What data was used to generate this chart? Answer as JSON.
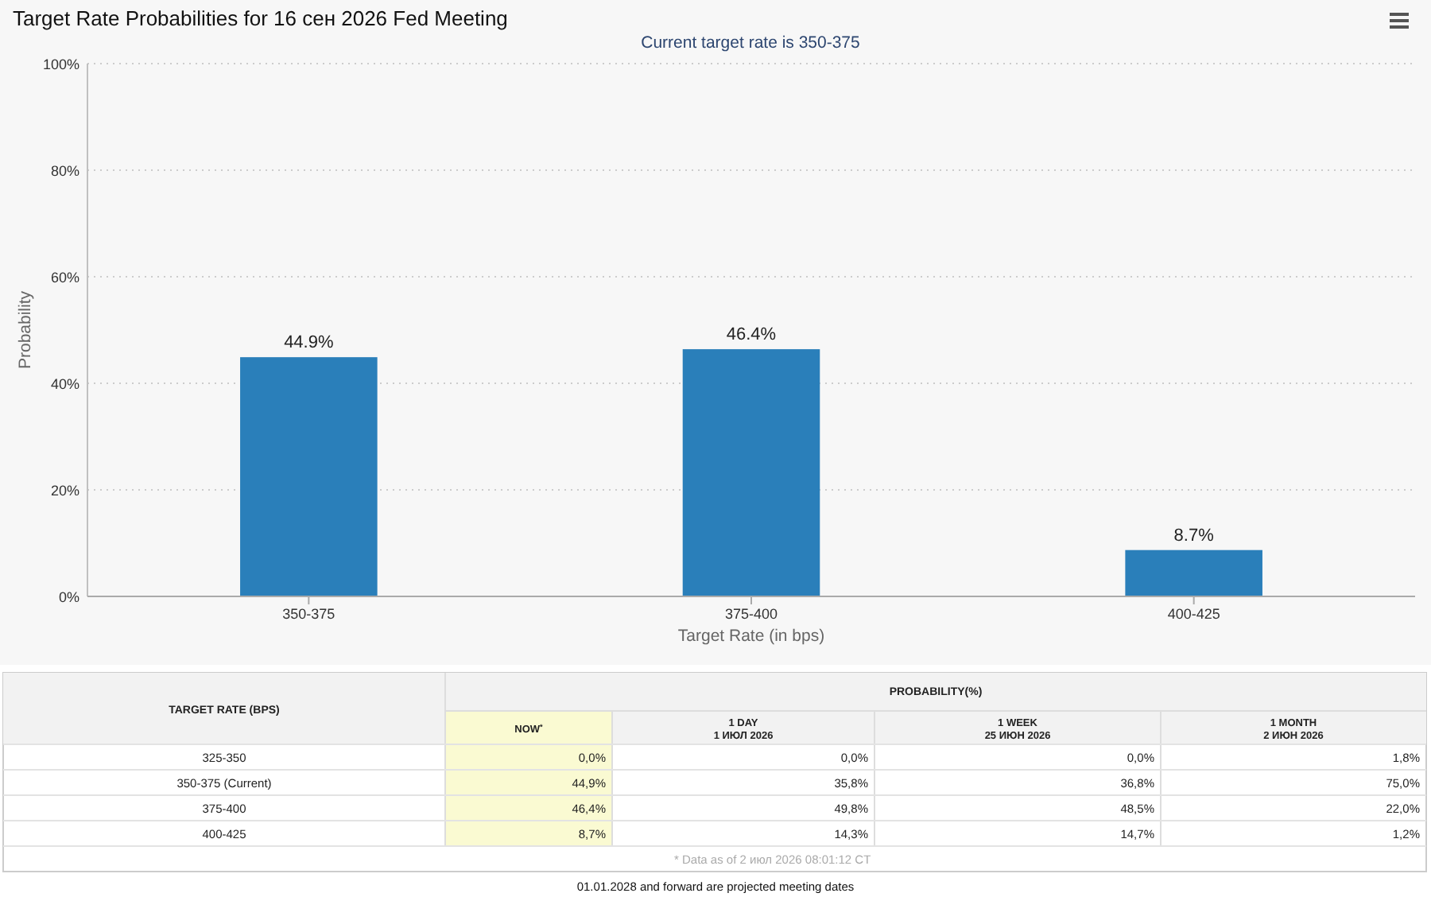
{
  "chart_data": [
    {
      "type": "bar",
      "title": "Target Rate Probabilities for 16 сен 2026 Fed Meeting",
      "subtitle": "Current target rate is 350-375",
      "xlabel": "Target Rate (in bps)",
      "ylabel": "Probability",
      "categories": [
        "350-375",
        "375-400",
        "400-425"
      ],
      "values": [
        44.9,
        46.4,
        8.7
      ],
      "color": "#2a7fba",
      "value_labels": [
        "44.9%",
        "46.4%",
        "8.7%"
      ],
      "ylim": [
        0,
        100
      ],
      "yticks": [
        {
          "value": 0,
          "label": "0%"
        },
        {
          "value": 20,
          "label": "20%"
        },
        {
          "value": 40,
          "label": "40%"
        },
        {
          "value": 60,
          "label": "60%"
        },
        {
          "value": 80,
          "label": "80%"
        },
        {
          "value": 100,
          "label": "100%"
        }
      ],
      "grid": "y"
    },
    {
      "type": "other",
      "title": "PROBABILITY(%)",
      "ylabel": "TARGET RATE (BPS)",
      "categories": [
        "NOW$^{*}$",
        "1 DAY\n1 ИЮЛ 2026",
        "1 WEEK\n25 ИЮН 2026",
        "1 MONTH\n2 ИЮН 2026"
      ],
      "y_categories": [
        "325-350",
        "350-375 (Current)",
        "375-400",
        "400-425"
      ],
      "cell_labels": [
        [
          "0,0%",
          "0,0%",
          "0,0%",
          "1,8%"
        ],
        [
          "44,9%",
          "35,8%",
          "36,8%",
          "75,0%"
        ],
        [
          "46,4%",
          "49,8%",
          "48,5%",
          "22,0%"
        ],
        [
          "8,7%",
          "14,3%",
          "14,7%",
          "1,2%"
        ]
      ],
      "annotations": [
        "* Data as of 2 июл 2026 08:01:12 CT",
        "01.01.2028 and forward are projected meeting dates"
      ]
    }
  ]
}
